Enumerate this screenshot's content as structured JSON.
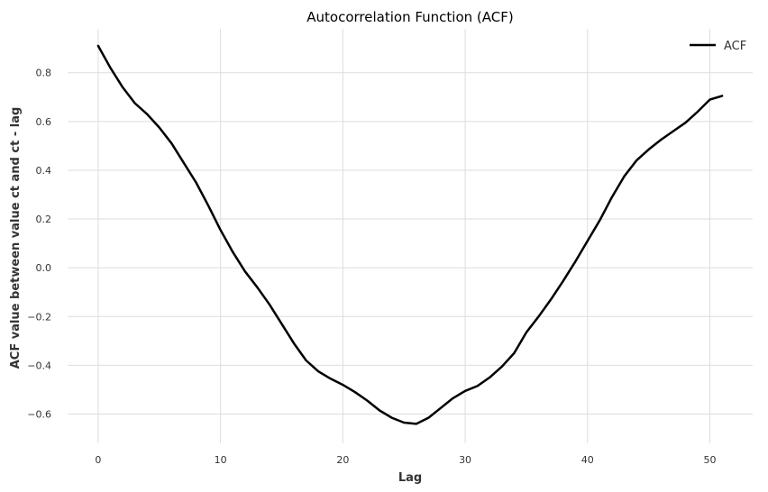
{
  "chart_data": {
    "type": "line",
    "title": "Autocorrelation Function (ACF)",
    "xlabel": "Lag",
    "ylabel": "ACF value between value ct and ct - lag",
    "xlim": [
      -2.5,
      53.5
    ],
    "ylim": [
      -0.72,
      0.98
    ],
    "xticks": [
      0,
      10,
      20,
      30,
      40,
      50
    ],
    "yticks": [
      -0.6,
      -0.4,
      -0.2,
      0.0,
      0.2,
      0.4,
      0.6,
      0.8
    ],
    "xtick_labels": [
      "0",
      "10",
      "20",
      "30",
      "40",
      "50"
    ],
    "ytick_labels": [
      "−0.6",
      "−0.4",
      "−0.2",
      "0.0",
      "0.2",
      "0.4",
      "0.6",
      "0.8"
    ],
    "grid": true,
    "legend_position": "top-right",
    "series": [
      {
        "name": "ACF",
        "color": "#000000",
        "x": [
          0,
          1,
          2,
          3,
          4,
          5,
          6,
          7,
          8,
          9,
          10,
          11,
          12,
          13,
          14,
          15,
          16,
          17,
          18,
          19,
          20,
          21,
          22,
          23,
          24,
          25,
          26,
          27,
          28,
          29,
          30,
          31,
          32,
          33,
          34,
          35,
          36,
          37,
          38,
          39,
          40,
          41,
          42,
          43,
          44,
          45,
          46,
          47,
          48,
          49,
          50,
          51
        ],
        "y": [
          0.91,
          0.82,
          0.74,
          0.675,
          0.63,
          0.575,
          0.51,
          0.43,
          0.35,
          0.255,
          0.155,
          0.065,
          -0.015,
          -0.08,
          -0.15,
          -0.23,
          -0.31,
          -0.38,
          -0.425,
          -0.455,
          -0.48,
          -0.51,
          -0.545,
          -0.585,
          -0.615,
          -0.635,
          -0.64,
          -0.615,
          -0.575,
          -0.535,
          -0.505,
          -0.485,
          -0.45,
          -0.405,
          -0.35,
          -0.265,
          -0.2,
          -0.13,
          -0.055,
          0.025,
          0.11,
          0.195,
          0.29,
          0.375,
          0.44,
          0.485,
          0.525,
          0.56,
          0.595,
          0.64,
          0.69,
          0.705
        ]
      }
    ]
  }
}
